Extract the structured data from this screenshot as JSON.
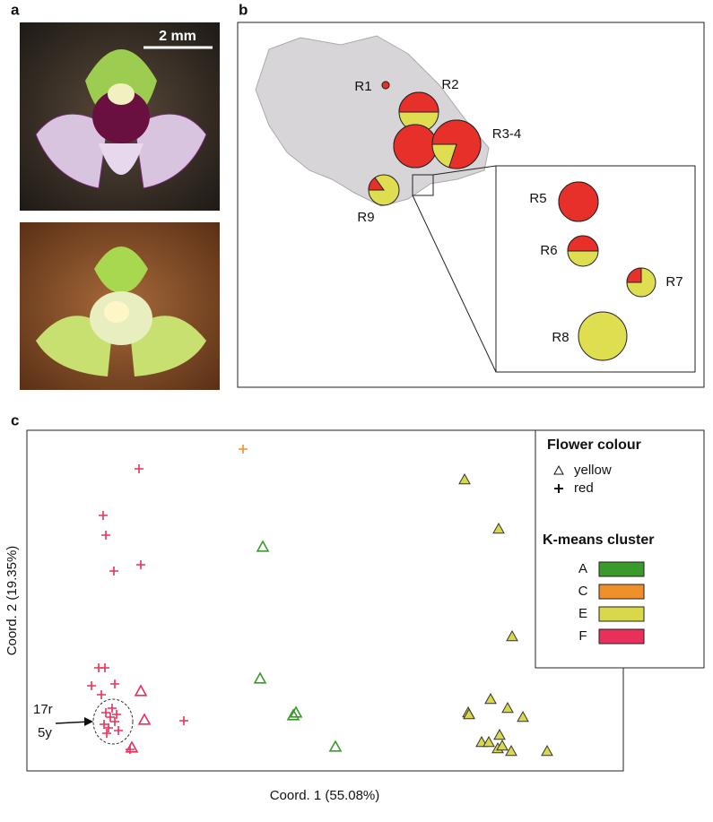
{
  "panels": {
    "a": "a",
    "b": "b",
    "c": "c"
  },
  "photo": {
    "scale_bar": "2 mm"
  },
  "map": {
    "pie_colors": {
      "red": "#e8302a",
      "yellow": "#dede50"
    },
    "labels": [
      "R1",
      "R2",
      "R3-4",
      "R9",
      "R5",
      "R6",
      "R7",
      "R8"
    ],
    "pies": [
      {
        "red": 100,
        "size": 4
      },
      {
        "red": 50,
        "size": 22
      },
      {
        "red": 100,
        "size": 24
      },
      {
        "red": 80,
        "size": 27
      },
      {
        "red": 15,
        "size": 17
      },
      {
        "red": 100,
        "size": 22
      },
      {
        "red": 50,
        "size": 17
      },
      {
        "red": 25,
        "size": 16
      },
      {
        "red": 0,
        "size": 27
      }
    ]
  },
  "chart_data": {
    "type": "scatter",
    "xlabel": "Coord. 1 (55.08%)",
    "ylabel": "Coord. 2 (19.35%)",
    "annotation": [
      "17r",
      "5y"
    ],
    "legend": {
      "flower_title": "Flower colour",
      "flower": [
        {
          "label": "yellow",
          "marker": "triangle"
        },
        {
          "label": "red",
          "marker": "cross"
        }
      ],
      "cluster_title": "K-means cluster"
    },
    "series": [
      {
        "name": "A",
        "color": "#3a9a2a",
        "filled": false,
        "x": [
          263,
          260,
          300,
          297,
          344
        ],
        "y": [
          250,
          103,
          65,
          62,
          27
        ],
        "marker": [
          "triangle",
          "triangle",
          "triangle",
          "triangle",
          "triangle"
        ]
      },
      {
        "name": "C",
        "color": "#f0902a",
        "filled": false,
        "x": [
          241
        ],
        "y": [
          359
        ],
        "marker": [
          "cross"
        ]
      },
      {
        "name": "E",
        "color": "#d8d84a",
        "filled": true,
        "x": [
          488,
          526,
          541,
          492,
          493,
          517,
          536,
          553,
          507,
          515,
          527,
          525,
          530,
          580,
          540
        ],
        "y": [
          325,
          270,
          150,
          65,
          63,
          80,
          70,
          60,
          32,
          32,
          40,
          25,
          28,
          22,
          22
        ],
        "marker": [
          "triangle",
          "triangle",
          "triangle",
          "triangle",
          "triangle",
          "triangle",
          "triangle",
          "triangle",
          "triangle",
          "triangle",
          "triangle",
          "triangle",
          "triangle",
          "triangle",
          "triangle"
        ]
      },
      {
        "name": "F",
        "color": "#e8305a",
        "filled": false,
        "x": [
          125,
          85,
          88,
          97,
          127,
          80,
          87,
          72,
          98,
          83,
          175,
          88,
          93,
          86,
          98,
          91,
          100,
          95,
          89,
          102,
          115,
          127,
          131,
          117
        ],
        "y": [
          337,
          285,
          263,
          223,
          230,
          115,
          115,
          95,
          97,
          85,
          56,
          65,
          60,
          52,
          55,
          48,
          63,
          70,
          42,
          45,
          24,
          89,
          57,
          26
        ],
        "marker": [
          "cross",
          "cross",
          "cross",
          "cross",
          "cross",
          "cross",
          "cross",
          "cross",
          "cross",
          "cross",
          "cross",
          "cross",
          "cross",
          "cross",
          "cross",
          "cross",
          "cross",
          "cross",
          "cross",
          "cross",
          "cross",
          "triangle",
          "triangle",
          "triangle"
        ]
      }
    ]
  }
}
